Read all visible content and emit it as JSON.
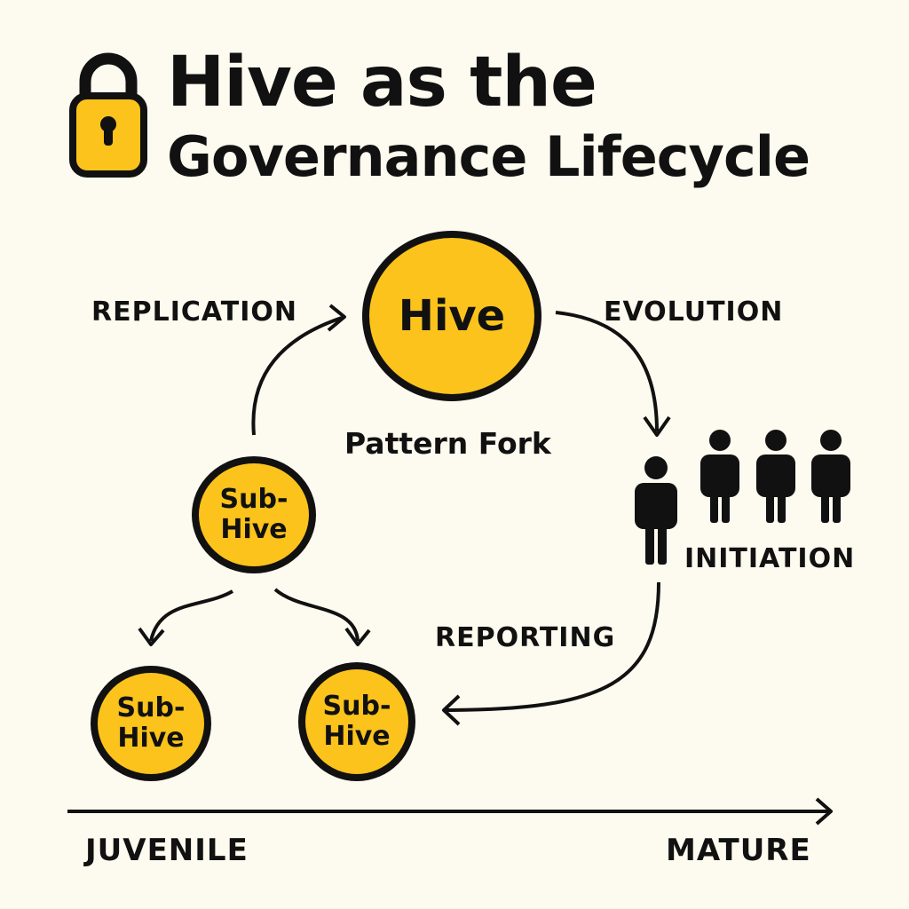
{
  "title": {
    "line1": "Hive as the",
    "line2": "Governance Lifecycle"
  },
  "icons": {
    "title_icon": "padlock-icon",
    "people": "people-icon"
  },
  "colors": {
    "background": "#fdfaef",
    "node_fill": "#fbc31b",
    "ink": "#111111"
  },
  "nodes": {
    "hive": "Hive",
    "sub_hive_top": {
      "line1": "Sub-",
      "line2": "Hive"
    },
    "sub_hive_left": {
      "line1": "Sub-",
      "line2": "Hive"
    },
    "sub_hive_right": {
      "line1": "Sub-",
      "line2": "Hive"
    }
  },
  "labels": {
    "replication": "REPLICATION",
    "evolution": "EVOLUTION",
    "pattern_fork": "Pattern Fork",
    "initiation": "INITIATION",
    "reporting": "REPORTING"
  },
  "timeline": {
    "start": "JUVENILE",
    "end": "MATURE"
  }
}
